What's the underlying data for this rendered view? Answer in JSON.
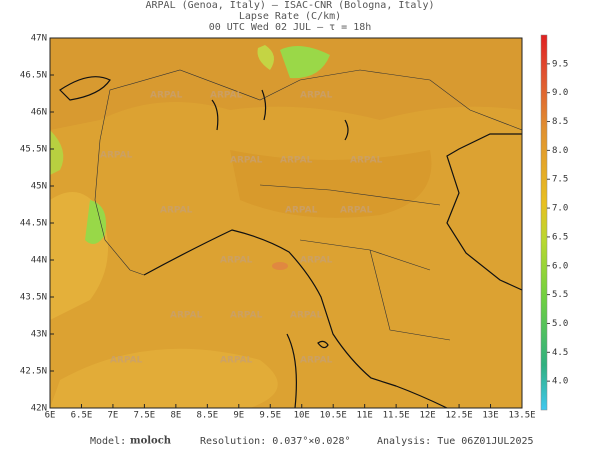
{
  "header": {
    "lines": [
      "ARPAL (Genoa, Italy)  –  ISAC-CNR (Bologna, Italy)",
      "Lapse Rate (C/km)",
      "00 UTC Wed 02 JUL  –  τ = 18h"
    ]
  },
  "map": {
    "lonlim": [
      6,
      13.5
    ],
    "latlim": [
      42,
      47
    ],
    "lon_ticks": [
      {
        "value": 6,
        "label": "6E"
      },
      {
        "value": 6.5,
        "label": "6.5E"
      },
      {
        "value": 7,
        "label": "7E"
      },
      {
        "value": 7.5,
        "label": "7.5E"
      },
      {
        "value": 8,
        "label": "8E"
      },
      {
        "value": 8.5,
        "label": "8.5E"
      },
      {
        "value": 9,
        "label": "9E"
      },
      {
        "value": 9.5,
        "label": "9.5E"
      },
      {
        "value": 10,
        "label": "10E"
      },
      {
        "value": 10.5,
        "label": "10.5E"
      },
      {
        "value": 11,
        "label": "11E"
      },
      {
        "value": 11.5,
        "label": "11.5E"
      },
      {
        "value": 12,
        "label": "12E"
      },
      {
        "value": 12.5,
        "label": "12.5E"
      },
      {
        "value": 13,
        "label": "13E"
      },
      {
        "value": 13.5,
        "label": "13.5E"
      }
    ],
    "lat_ticks": [
      {
        "value": 42,
        "label": "42N"
      },
      {
        "value": 42.5,
        "label": "42.5N"
      },
      {
        "value": 43,
        "label": "43N"
      },
      {
        "value": 43.5,
        "label": "43.5N"
      },
      {
        "value": 44,
        "label": "44N"
      },
      {
        "value": 44.5,
        "label": "44.5N"
      },
      {
        "value": 45,
        "label": "45N"
      },
      {
        "value": 45.5,
        "label": "45.5N"
      },
      {
        "value": 46,
        "label": "46N"
      },
      {
        "value": 46.5,
        "label": "46.5N"
      },
      {
        "value": 47,
        "label": "47N"
      }
    ],
    "watermark": "ARPAL"
  },
  "colorbar": {
    "range": [
      3.5,
      10
    ],
    "ticks": [
      {
        "value": 4,
        "label": "4.0"
      },
      {
        "value": 4.5,
        "label": "4.5"
      },
      {
        "value": 5,
        "label": "5.0"
      },
      {
        "value": 5.5,
        "label": "5.5"
      },
      {
        "value": 6,
        "label": "6.0"
      },
      {
        "value": 6.5,
        "label": "6.5"
      },
      {
        "value": 7,
        "label": "7.0"
      },
      {
        "value": 7.5,
        "label": "7.5"
      },
      {
        "value": 8,
        "label": "8.0"
      },
      {
        "value": 8.5,
        "label": "8.5"
      },
      {
        "value": 9,
        "label": "9.0"
      },
      {
        "value": 9.5,
        "label": "9.5"
      }
    ]
  },
  "footer": {
    "model_label": "Model:",
    "model": "moloch",
    "resolution": "Resolution: 0.037°×0.028°",
    "analysis": "Analysis: Tue 06Z01JUL2025"
  }
}
